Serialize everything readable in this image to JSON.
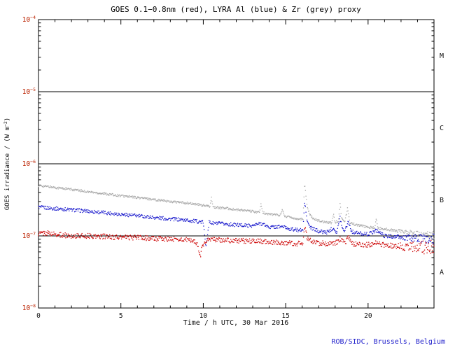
{
  "page": {
    "footer": "ROB/SIDC, Brussels, Belgium"
  },
  "chart_data": {
    "type": "scatter",
    "title": "GOES 0.1−0.8nm (red), LYRA Al (blue) & Zr (grey) proxy",
    "xlabel": "Time / h UTC, 30 Mar 2016",
    "ylabel_base": "GOES irradiance / (W m",
    "ylabel_exp": "−2",
    "ylabel_close": ")",
    "xlim": [
      0,
      24
    ],
    "x_major_ticks": [
      0,
      5,
      10,
      15,
      20
    ],
    "x_minor_step": 1,
    "ylog": true,
    "ylim": [
      1e-08,
      0.0001
    ],
    "y_decade_exponents": [
      -8,
      -7,
      -6,
      -5,
      -4
    ],
    "hlines": [
      1e-05,
      1e-06,
      1e-07
    ],
    "grid": false,
    "legend": "none (series named in title)",
    "flare_classes": [
      {
        "label": "M",
        "exp_range": [
          -5,
          -4
        ]
      },
      {
        "label": "C",
        "exp_range": [
          -6,
          -5
        ]
      },
      {
        "label": "B",
        "exp_range": [
          -7,
          -6
        ]
      },
      {
        "label": "A",
        "exp_range": [
          -8,
          -7
        ]
      }
    ],
    "colors": {
      "goes_red": "#cc0000",
      "al_blue": "#1818cc",
      "zr_grey": "#a8a8a8",
      "axis": "#000000",
      "title": "#000000",
      "xtick_label": "#111111",
      "ytick_label": "#bb2200",
      "footer": "#2222cc"
    },
    "series": [
      {
        "id": "zr-grey",
        "name": "LYRA Zr proxy",
        "color": "#a8a8a8",
        "noise": 0.016,
        "anchors": {
          "x": [
            0,
            1,
            2,
            3,
            4,
            5,
            6,
            7,
            8,
            9,
            9.5,
            10,
            10.4,
            10.5,
            10.6,
            11,
            11.5,
            12,
            12.5,
            13,
            13.4,
            13.5,
            13.6,
            14,
            14.7,
            14.8,
            14.9,
            15.3,
            15.8,
            16.05,
            16.15,
            16.3,
            16.45,
            16.6,
            17,
            17.5,
            17.8,
            17.9,
            18,
            18.2,
            18.3,
            18.4,
            18.6,
            18.75,
            18.9,
            19,
            19.3,
            19.6,
            20,
            20.4,
            20.5,
            20.6,
            21,
            21.5,
            22,
            22.5,
            23,
            23.5,
            24
          ],
          "y": [
            5e-07,
            4.7e-07,
            4.4e-07,
            4.1e-07,
            3.85e-07,
            3.6e-07,
            3.4e-07,
            3.2e-07,
            3e-07,
            2.85e-07,
            2.75e-07,
            2.65e-07,
            2.55e-07,
            3.4e-07,
            2.5e-07,
            2.45e-07,
            2.4e-07,
            2.3e-07,
            2.25e-07,
            2.18e-07,
            2.12e-07,
            2.7e-07,
            2.1e-07,
            2e-07,
            1.95e-07,
            2.4e-07,
            1.9e-07,
            1.8e-07,
            1.72e-07,
            1.7e-07,
            5.5e-07,
            2.6e-07,
            2e-07,
            1.8e-07,
            1.62e-07,
            1.55e-07,
            1.52e-07,
            2e-07,
            1.55e-07,
            1.6e-07,
            2.8e-07,
            1.75e-07,
            1.6e-07,
            2.4e-07,
            1.55e-07,
            1.5e-07,
            1.42e-07,
            1.38e-07,
            1.32e-07,
            1.3e-07,
            1.7e-07,
            1.28e-07,
            1.25e-07,
            1.2e-07,
            1.16e-07,
            1.12e-07,
            1.08e-07,
            1.05e-07,
            1.03e-07
          ]
        }
      },
      {
        "id": "al-blue",
        "name": "LYRA Al proxy",
        "color": "#1818cc",
        "noise": 0.025,
        "anchors": {
          "x": [
            0,
            1,
            2,
            3,
            4,
            5,
            6,
            7,
            8,
            9,
            9.5,
            10,
            10.15,
            10.25,
            10.35,
            10.5,
            11,
            11.5,
            12,
            12.5,
            13,
            13.5,
            14,
            14.8,
            15.3,
            15.8,
            16.05,
            16.15,
            16.3,
            16.5,
            17,
            17.5,
            17.9,
            18.1,
            18.3,
            18.45,
            18.6,
            18.8,
            19,
            19.3,
            19.6,
            20,
            20.5,
            21,
            21.5,
            22,
            22.5,
            23,
            23.5,
            24
          ],
          "y": [
            2.5e-07,
            2.4e-07,
            2.3e-07,
            2.2e-07,
            2.1e-07,
            2e-07,
            1.9e-07,
            1.8e-07,
            1.72e-07,
            1.65e-07,
            1.6e-07,
            1.55e-07,
            7e-08,
            1.05e-07,
            1.55e-07,
            1.5e-07,
            1.48e-07,
            1.45e-07,
            1.42e-07,
            1.4e-07,
            1.38e-07,
            1.5e-07,
            1.32e-07,
            1.35e-07,
            1.24e-07,
            1.2e-07,
            1.2e-07,
            3e-07,
            1.6e-07,
            1.3e-07,
            1.16e-07,
            1.12e-07,
            1.3e-07,
            1.1e-07,
            1.8e-07,
            1.25e-07,
            1.2e-07,
            1.6e-07,
            1.15e-07,
            1.1e-07,
            1.08e-07,
            1.05e-07,
            1.2e-07,
            1e-07,
            9.8e-08,
            9.5e-08,
            9.3e-08,
            9.2e-08,
            9e-08,
            9e-08
          ]
        }
      },
      {
        "id": "goes-red",
        "name": "GOES 0.1−0.8nm",
        "color": "#cc0000",
        "noise": 0.035,
        "anchors": {
          "x": [
            0,
            0.5,
            1,
            2,
            3,
            4,
            5,
            6,
            7,
            8,
            9,
            9.5,
            9.7,
            9.8,
            9.9,
            10.1,
            10.5,
            11,
            12,
            13,
            14,
            15,
            15.8,
            16.05,
            16.15,
            16.3,
            16.6,
            17,
            17.5,
            18,
            18.3,
            18.6,
            18.8,
            19,
            19.5,
            20,
            20.5,
            21,
            21.5,
            22,
            22.5,
            23,
            23.5,
            24
          ],
          "y": [
            1.08e-07,
            1.1e-07,
            1.05e-07,
            1e-07,
            1e-07,
            9.8e-08,
            9.5e-08,
            9.5e-08,
            9.2e-08,
            9e-08,
            8.8e-08,
            8.5e-08,
            7e-08,
            5e-08,
            6.5e-08,
            8.5e-08,
            9e-08,
            8.8e-08,
            8.6e-08,
            8.5e-08,
            8.3e-08,
            8e-08,
            7.8e-08,
            8e-08,
            1.4e-07,
            9.5e-08,
            8.2e-08,
            8e-08,
            7.8e-08,
            7.8e-08,
            9e-08,
            8e-08,
            9.5e-08,
            7.8e-08,
            7.6e-08,
            7.5e-08,
            8e-08,
            7.4e-08,
            7.3e-08,
            7.2e-08,
            7.1e-08,
            7e-08,
            6.9e-08,
            7e-08
          ]
        }
      }
    ]
  }
}
